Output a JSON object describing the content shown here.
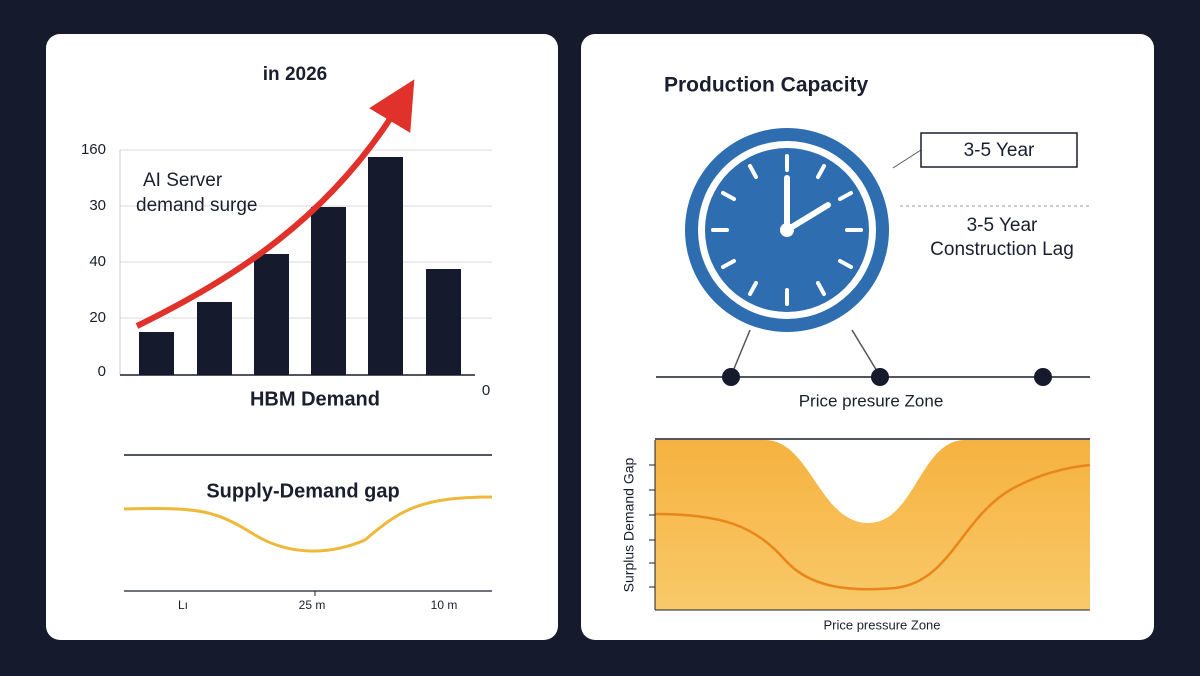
{
  "left_panel": {
    "title": "in 2026",
    "y_labels": [
      "160",
      "30",
      "40",
      "20",
      "0"
    ],
    "annotation": [
      "AI Server",
      "demand surge"
    ],
    "x_title": "HBM Demand",
    "x_end_label": "0",
    "gap_title": "Supply-Demand gap",
    "gap_x_labels": [
      "Lı",
      "25 m",
      "10 m"
    ]
  },
  "right_panel": {
    "title": "Production Capacity",
    "box_label": "3-5 Year",
    "lag_label": [
      "3-5 Year",
      "Construction Lag"
    ],
    "zone_label": "Price presure Zone",
    "chart_y_label": "Surplus Demand Gap",
    "chart_x_label": "Price pressure Zone"
  }
}
